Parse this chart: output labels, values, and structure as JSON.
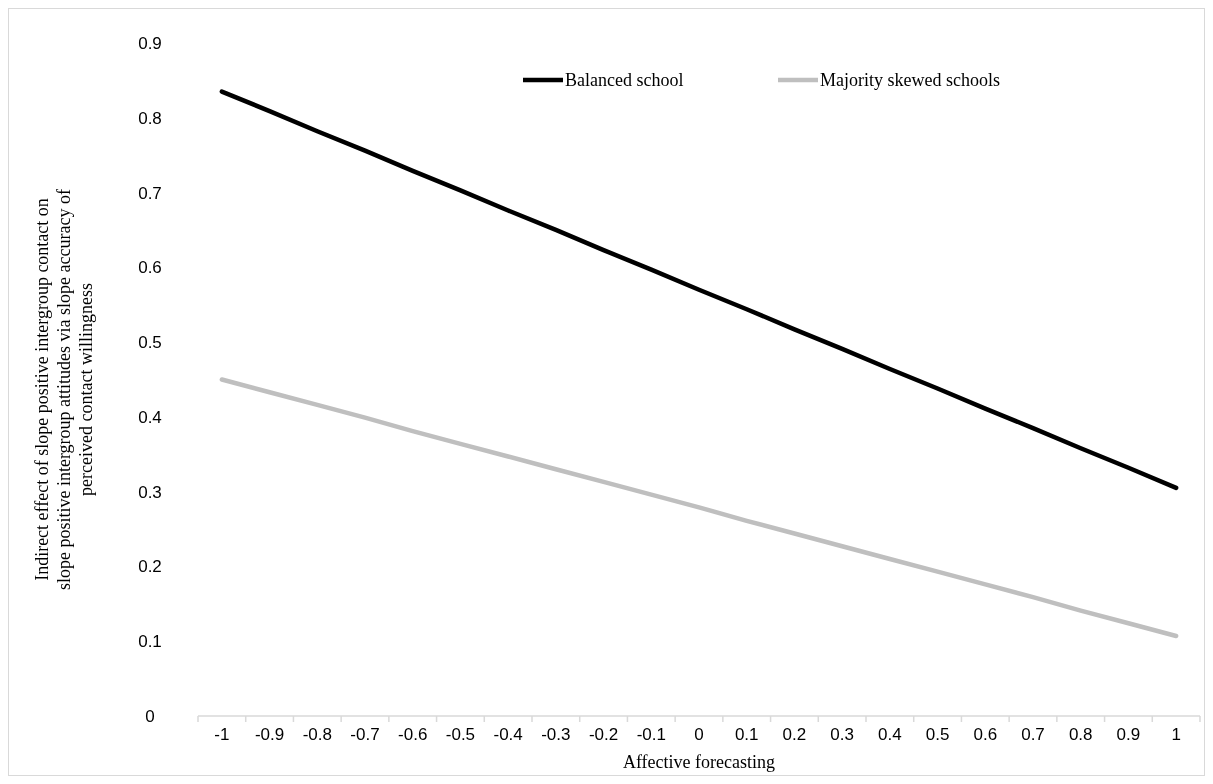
{
  "chart_data": {
    "type": "line",
    "xlabel": "Affective forecasting",
    "ylabel": "Indirect effect of slope positive intergroup contact on slope positive intergroup attitudes via slope accuracy of perceived contact willingness",
    "categories": [
      "-1",
      "-0.9",
      "-0.8",
      "-0.7",
      "-0.6",
      "-0.5",
      "-0.4",
      "-0.3",
      "-0.2",
      "-0.1",
      "0",
      "0.1",
      "0.2",
      "0.3",
      "0.4",
      "0.5",
      "0.6",
      "0.7",
      "0.8",
      "0.9",
      "1"
    ],
    "series": [
      {
        "name": "Balanced school",
        "color": "#000000",
        "values": [
          0.835,
          0.809,
          0.782,
          0.756,
          0.729,
          0.703,
          0.676,
          0.65,
          0.623,
          0.597,
          0.57,
          0.544,
          0.517,
          0.491,
          0.464,
          0.438,
          0.411,
          0.385,
          0.358,
          0.332,
          0.305
        ]
      },
      {
        "name": "Majority skewed schools",
        "color": "#bfbfbf",
        "values": [
          0.45,
          0.433,
          0.416,
          0.399,
          0.381,
          0.364,
          0.347,
          0.33,
          0.313,
          0.296,
          0.279,
          0.261,
          0.244,
          0.227,
          0.21,
          0.193,
          0.176,
          0.159,
          0.141,
          0.124,
          0.107
        ]
      }
    ],
    "ylim": [
      0,
      0.9
    ],
    "yticks": [
      0,
      0.1,
      0.2,
      0.3,
      0.4,
      0.5,
      0.6,
      0.7,
      0.8,
      0.9
    ],
    "grid": false,
    "legend": "top right",
    "marker": "none",
    "line_style": "solid"
  }
}
